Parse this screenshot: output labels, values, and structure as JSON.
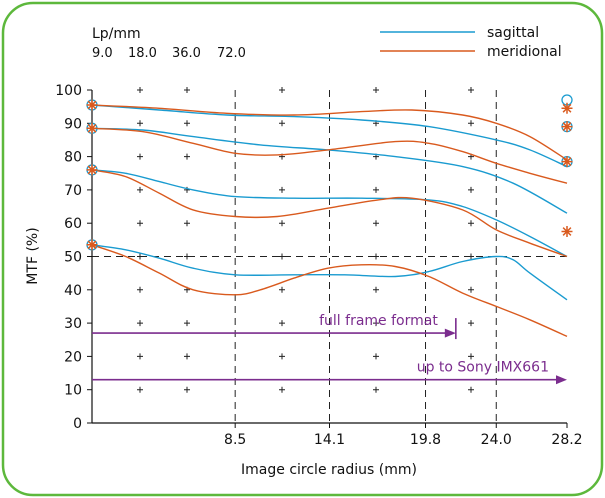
{
  "chart_data": {
    "type": "line",
    "frequency_legend": {
      "title": "Lp/mm",
      "values": [
        "9.0",
        "18.0",
        "36.0",
        "72.0"
      ]
    },
    "xlabel": "Image circle radius (mm)",
    "ylabel": "MTF (%)",
    "xlim": [
      0,
      28.2
    ],
    "ylim": [
      0,
      100
    ],
    "x_ticks": [
      {
        "value": 8.5,
        "label": "8.5"
      },
      {
        "value": 14.1,
        "label": "14.1"
      },
      {
        "value": 19.8,
        "label": "19.8"
      },
      {
        "value": 24.0,
        "label": "24.0"
      },
      {
        "value": 28.2,
        "label": "28.2"
      }
    ],
    "y_ticks": [
      0,
      10,
      20,
      30,
      40,
      50,
      60,
      70,
      80,
      90,
      100
    ],
    "y_tick_labels": [
      "0",
      "10",
      "20",
      "30",
      "40",
      "50",
      "60",
      "70",
      "80",
      "90",
      "100"
    ],
    "series": [
      {
        "name": "sagittal",
        "color": "#1a9bd0",
        "curves": [
          {
            "frequency": "9.0",
            "x": [
              0,
              4,
              8,
              12,
              16,
              20,
              24,
              26,
              28.2
            ],
            "y": [
              95.5,
              94,
              92.5,
              92,
              91,
              89,
              85,
              82,
              77
            ]
          },
          {
            "frequency": "18.0",
            "x": [
              0,
              3,
              6,
              10,
              14,
              18,
              22,
              25,
              28.2
            ],
            "y": [
              88.5,
              88,
              86,
              83.5,
              82,
              80,
              77,
              72,
              63
            ]
          },
          {
            "frequency": "36.0",
            "x": [
              0,
              2,
              4,
              6,
              8.5,
              12,
              16,
              20,
              22,
              24,
              26,
              28.2
            ],
            "y": [
              76,
              75,
              72.5,
              70,
              68,
              67.5,
              67.5,
              67,
              65,
              61,
              56,
              50
            ]
          },
          {
            "frequency": "72.0",
            "x": [
              0,
              2,
              4,
              6,
              8.5,
              12,
              15,
              18,
              20,
              22,
              24,
              25,
              26,
              28.2
            ],
            "y": [
              53.5,
              52,
              49.5,
              46.5,
              44.5,
              44.5,
              44.5,
              44,
              45.5,
              48.5,
              50,
              49,
              45,
              37
            ]
          }
        ]
      },
      {
        "name": "meridional",
        "color": "#d95a1e",
        "curves": [
          {
            "frequency": "9.0",
            "x": [
              0,
              4,
              8,
              12,
              16,
              19,
              22,
              24,
              26,
              28.2
            ],
            "y": [
              95.5,
              94.5,
              93,
              92.5,
              93.5,
              94,
              92.5,
              90,
              86,
              79
            ]
          },
          {
            "frequency": "18.0",
            "x": [
              0,
              3,
              6,
              8.5,
              11,
              14,
              18,
              20,
              22,
              24,
              26,
              28.2
            ],
            "y": [
              88.5,
              87.5,
              84,
              81,
              80.5,
              82,
              84.5,
              84,
              81.5,
              78,
              75,
              72
            ]
          },
          {
            "frequency": "36.0",
            "x": [
              0,
              2,
              4,
              6,
              8.5,
              11,
              14,
              17,
              19,
              22,
              24,
              26,
              28.2
            ],
            "y": [
              76,
              74,
              69,
              64,
              62,
              62,
              64.5,
              67,
              67.5,
              64,
              58,
              54,
              50
            ]
          },
          {
            "frequency": "72.0",
            "x": [
              0,
              2,
              4,
              6,
              8.5,
              10,
              12,
              14,
              16,
              18,
              20,
              22,
              24,
              26,
              28.2
            ],
            "y": [
              53.5,
              50,
              45,
              40,
              38.5,
              40,
              43.5,
              46.5,
              47.5,
              47,
              44,
              39,
              35,
              31,
              26
            ]
          }
        ]
      }
    ],
    "axis_markers": {
      "left": [
        {
          "y": 95.5,
          "symbol": "circle-star"
        },
        {
          "y": 88.5,
          "symbol": "circle-star"
        },
        {
          "y": 76,
          "symbol": "circle-star"
        },
        {
          "y": 53.5,
          "symbol": "circle-star"
        }
      ],
      "right": [
        {
          "y": 97,
          "symbol": "circle"
        },
        {
          "y": 94.5,
          "symbol": "star"
        },
        {
          "y": 89,
          "symbol": "circle-star"
        },
        {
          "y": 78.5,
          "symbol": "circle-star"
        },
        {
          "y": 57.5,
          "symbol": "star"
        }
      ]
    },
    "reference_lines": {
      "vertical_x": [
        8.5,
        14.1,
        19.8,
        24.0
      ],
      "horizontal_y": [
        50
      ]
    },
    "annotations": [
      {
        "text": "full frame format",
        "x_end": 21.6,
        "y": 27,
        "color": "#7b2d8e"
      },
      {
        "text": "up to Sony IMX661",
        "x_end": 28.2,
        "y": 13,
        "color": "#7b2d8e"
      }
    ],
    "legend": {
      "placement": "top-right"
    },
    "grid": "dashed reference lines with plus-sign dot grid",
    "frame": {
      "border_color": "#5db83c"
    }
  }
}
